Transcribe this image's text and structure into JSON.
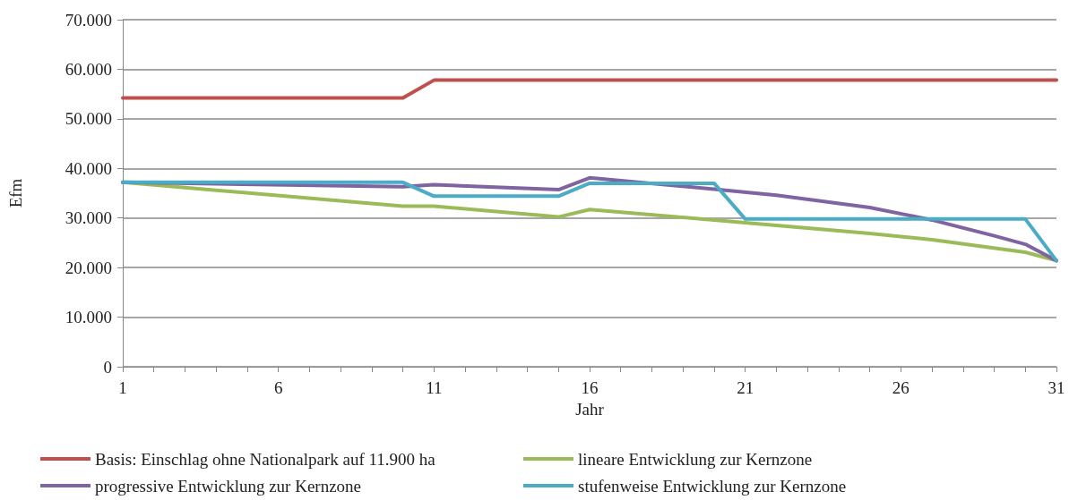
{
  "chart_data": {
    "type": "line",
    "xlabel": "Jahr",
    "ylabel": "Efm",
    "xlim": [
      1,
      31
    ],
    "xticks": [
      1,
      6,
      11,
      16,
      21,
      26,
      31
    ],
    "ylim": [
      0,
      70000
    ],
    "yticks": [
      {
        "value": 0,
        "label": "0"
      },
      {
        "value": 10000,
        "label": "10.000"
      },
      {
        "value": 20000,
        "label": "20.000"
      },
      {
        "value": 30000,
        "label": "30.000"
      },
      {
        "value": 40000,
        "label": "40.000"
      },
      {
        "value": 50000,
        "label": "50.000"
      },
      {
        "value": 60000,
        "label": "60.000"
      },
      {
        "value": 70000,
        "label": "70.000"
      }
    ],
    "grid": "y",
    "legend": "bottom",
    "marker": "none",
    "line_style": "solid",
    "series": [
      {
        "name": "Basis: Einschlag ohne Nationalpark auf 11.900 ha",
        "color": "#c0504d",
        "x": [
          1,
          10,
          11,
          31
        ],
        "values": [
          54200,
          54200,
          57800,
          57800
        ]
      },
      {
        "name": "lineare Entwicklung zur Kernzone",
        "color": "#9bbb59",
        "x": [
          1,
          10,
          11,
          15,
          16,
          20,
          22,
          25,
          27,
          30,
          31
        ],
        "values": [
          37200,
          32400,
          32400,
          30200,
          31700,
          29600,
          28500,
          26900,
          25600,
          23100,
          21400
        ]
      },
      {
        "name": "progressive Entwicklung zur Kernzone",
        "color": "#8064a2",
        "x": [
          1,
          10,
          11,
          15,
          16,
          20,
          22,
          25,
          27,
          29,
          30,
          31
        ],
        "values": [
          37200,
          36300,
          36700,
          35700,
          38100,
          35800,
          34600,
          32100,
          29600,
          26400,
          24700,
          21400
        ]
      },
      {
        "name": "stufenweise Entwicklung zur Kernzone",
        "color": "#4bacc6",
        "x": [
          1,
          10,
          11,
          15,
          16,
          20,
          21,
          30,
          31
        ],
        "values": [
          37200,
          37200,
          34400,
          34400,
          37000,
          37000,
          29800,
          29800,
          21400
        ]
      }
    ]
  }
}
